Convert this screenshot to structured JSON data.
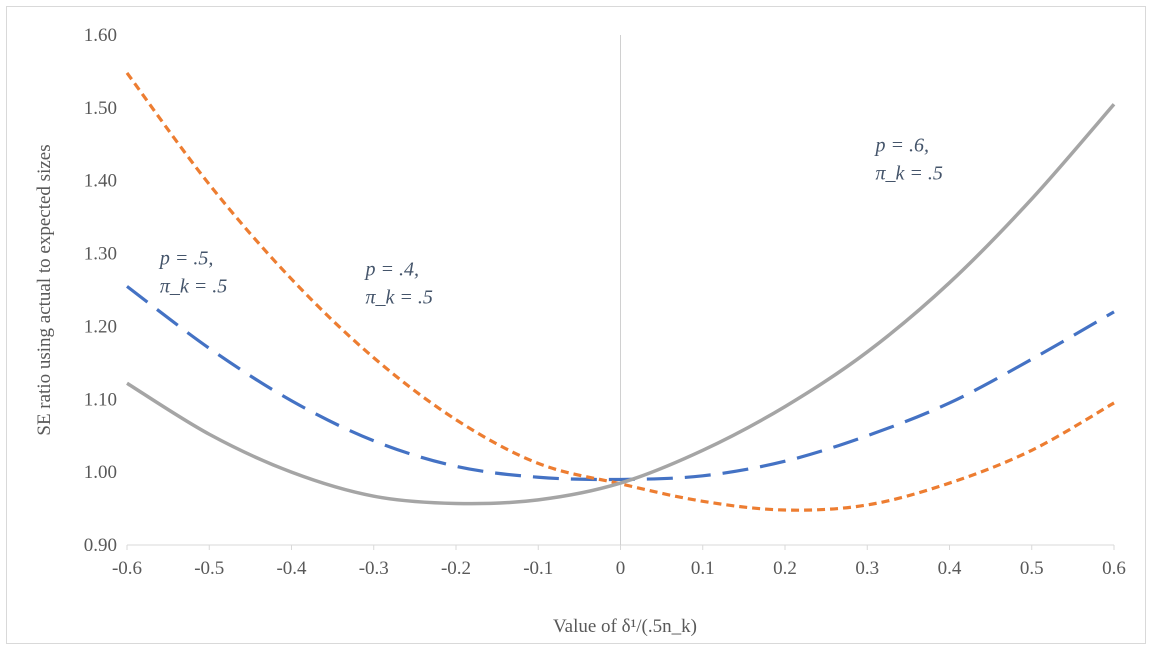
{
  "chart_data": {
    "type": "line",
    "title": "",
    "xlabel": "Value of δ¹/(.5n_k)",
    "ylabel": "SE ratio using actual to expected sizes",
    "xlim": [
      -0.6,
      0.6
    ],
    "ylim": [
      0.9,
      1.6
    ],
    "x_tick_labels": [
      "-0.6",
      "-0.5",
      "-0.4",
      "-0.3",
      "-0.2",
      "-0.1",
      "0",
      "0.1",
      "0.2",
      "0.3",
      "0.4",
      "0.5",
      "0.6"
    ],
    "y_tick_labels": [
      "0.90",
      "1.00",
      "1.10",
      "1.20",
      "1.30",
      "1.40",
      "1.50",
      "1.60"
    ],
    "grid": false,
    "legend": "none",
    "x": [
      -0.6,
      -0.5,
      -0.4,
      -0.3,
      -0.2,
      -0.1,
      0,
      0.1,
      0.2,
      0.3,
      0.4,
      0.5,
      0.6
    ],
    "series": [
      {
        "values": [
          1.255,
          1.17,
          1.098,
          1.043,
          1.008,
          0.993,
          0.99,
          0.995,
          1.015,
          1.05,
          1.095,
          1.155,
          1.22
        ],
        "color": "#4472c4",
        "dash": "dashed"
      },
      {
        "values": [
          1.548,
          1.395,
          1.265,
          1.157,
          1.072,
          1.012,
          0.984,
          0.96,
          0.948,
          0.955,
          0.985,
          1.03,
          1.095
        ],
        "color": "#ed7d31",
        "dash": "dotted"
      },
      {
        "values": [
          1.122,
          1.052,
          1.0,
          0.967,
          0.957,
          0.962,
          0.985,
          1.03,
          1.09,
          1.165,
          1.26,
          1.375,
          1.505
        ],
        "color": "#a5a5a5",
        "dash": "solid"
      }
    ],
    "annotations": [
      {
        "line1": "p = .5,",
        "line2": "π_k = .5",
        "x": -0.56,
        "y": 1.285
      },
      {
        "line1": "p = .4,",
        "line2": "π_k = .5",
        "x": -0.31,
        "y": 1.27
      },
      {
        "line1": "p = .6,",
        "line2": "π_k = .5",
        "x": 0.31,
        "y": 1.44
      }
    ]
  }
}
